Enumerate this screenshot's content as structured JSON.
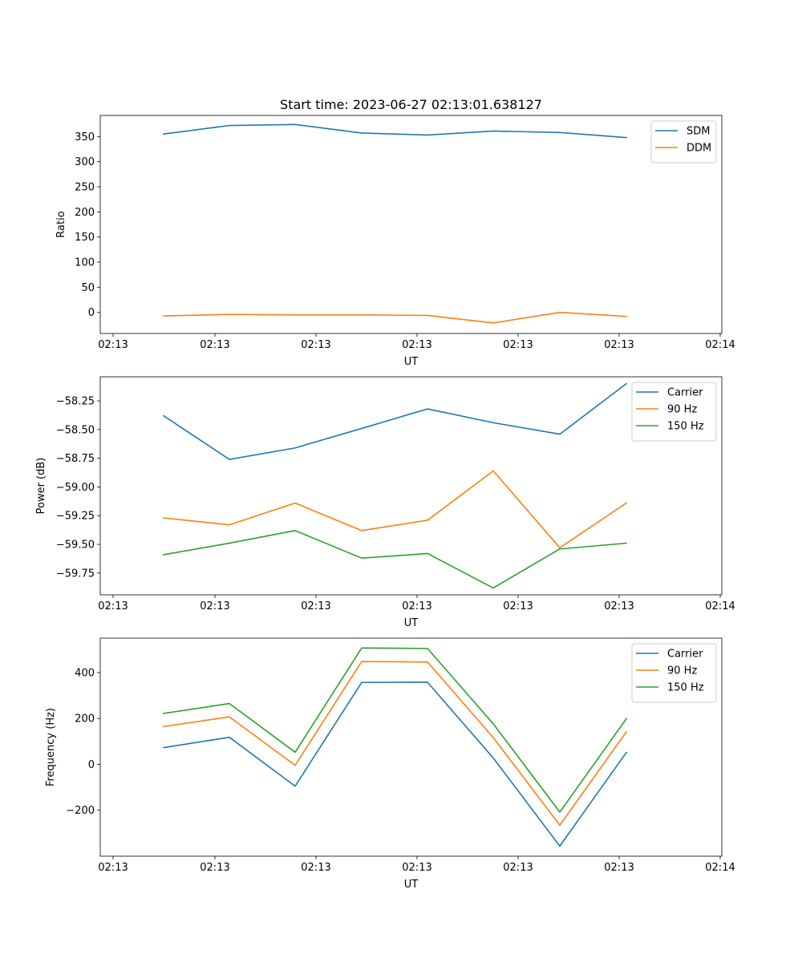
{
  "figure": {
    "title": "Start time: 2023-06-27 02:13:01.638127"
  },
  "colors": {
    "blue": "#1f77b4",
    "orange": "#ff7f0e",
    "green": "#2ca02c"
  },
  "chart_data": [
    {
      "type": "line",
      "xlabel": "UT",
      "ylabel": "Ratio",
      "x_tick_labels": [
        "02:13",
        "02:13",
        "02:13",
        "02:13",
        "02:13",
        "02:13",
        "02:14"
      ],
      "yticks": [
        0,
        50,
        100,
        150,
        200,
        250,
        300,
        350
      ],
      "y_tick_labels": [
        "0",
        "50",
        "100",
        "150",
        "200",
        "250",
        "300",
        "350"
      ],
      "ylim": [
        -42,
        392
      ],
      "legend_position": "top-right",
      "grid": false,
      "series": [
        {
          "name": "SDM",
          "color": "#1f77b4",
          "values": [
            355,
            372,
            374,
            357,
            353,
            361,
            358,
            348
          ]
        },
        {
          "name": "DDM",
          "color": "#ff7f0e",
          "values": [
            -7,
            -4,
            -5,
            -5,
            -6,
            -21,
            0,
            -8
          ]
        }
      ]
    },
    {
      "type": "line",
      "xlabel": "UT",
      "ylabel": "Power (dB)",
      "x_tick_labels": [
        "02:13",
        "02:13",
        "02:13",
        "02:13",
        "02:13",
        "02:13",
        "02:14"
      ],
      "yticks": [
        -58.25,
        -58.5,
        -58.75,
        -59.0,
        -59.25,
        -59.5,
        -59.75
      ],
      "y_tick_labels": [
        "−58.25",
        "−58.50",
        "−58.75",
        "−59.00",
        "−59.25",
        "−59.50",
        "−59.75"
      ],
      "ylim": [
        -59.94,
        -58.04
      ],
      "legend_position": "top-right",
      "grid": false,
      "series": [
        {
          "name": "Carrier",
          "color": "#1f77b4",
          "values": [
            -58.38,
            -58.76,
            -58.66,
            -58.49,
            -58.32,
            -58.44,
            -58.54,
            -58.1
          ]
        },
        {
          "name": "90 Hz",
          "color": "#ff7f0e",
          "values": [
            -59.27,
            -59.33,
            -59.14,
            -59.38,
            -59.29,
            -58.86,
            -59.53,
            -59.14
          ]
        },
        {
          "name": "150 Hz",
          "color": "#2ca02c",
          "values": [
            -59.59,
            -59.49,
            -59.38,
            -59.62,
            -59.58,
            -59.88,
            -59.54,
            -59.49
          ]
        }
      ]
    },
    {
      "type": "line",
      "xlabel": "UT",
      "ylabel": "Frequency (Hz)",
      "x_tick_labels": [
        "02:13",
        "02:13",
        "02:13",
        "02:13",
        "02:13",
        "02:13",
        "02:14"
      ],
      "yticks": [
        400,
        200,
        0,
        -200
      ],
      "y_tick_labels": [
        "400",
        "200",
        "0",
        "−200"
      ],
      "ylim": [
        -400,
        550
      ],
      "legend_position": "top-right",
      "grid": false,
      "series": [
        {
          "name": "Carrier",
          "color": "#1f77b4",
          "values": [
            73,
            118,
            -95,
            357,
            358,
            28,
            -356,
            52
          ]
        },
        {
          "name": "90 Hz",
          "color": "#ff7f0e",
          "values": [
            165,
            207,
            -4,
            448,
            446,
            117,
            -265,
            142
          ]
        },
        {
          "name": "150 Hz",
          "color": "#2ca02c",
          "values": [
            222,
            265,
            53,
            507,
            505,
            177,
            -208,
            199
          ]
        }
      ]
    }
  ]
}
